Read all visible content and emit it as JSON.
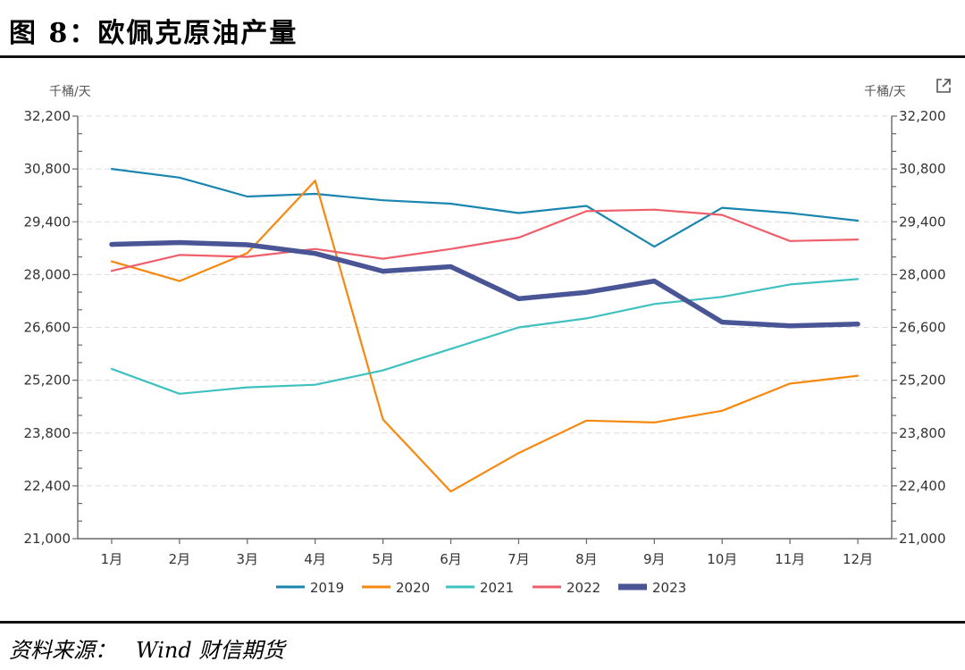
{
  "figure": {
    "title": "图 8：欧佩克原油产量",
    "source_label": "资料来源：",
    "source_text": "Wind 财信期货"
  },
  "toolbar": {
    "export_icon": "external-link-icon"
  },
  "chart_data": {
    "type": "line",
    "title": "欧佩克原油产量",
    "xlabel": "",
    "ylabel_left": "千桶/天",
    "ylabel_right": "千桶/天",
    "categories": [
      "1月",
      "2月",
      "3月",
      "4月",
      "5月",
      "6月",
      "7月",
      "8月",
      "9月",
      "10月",
      "11月",
      "12月"
    ],
    "ylim": [
      21000,
      32200
    ],
    "yticks": [
      21000,
      22400,
      23800,
      25200,
      26600,
      28000,
      29400,
      30800,
      32200
    ],
    "ytick_labels": [
      "21,000",
      "22,400",
      "23,800",
      "25,200",
      "26,600",
      "28,000",
      "29,400",
      "30,800",
      "32,200"
    ],
    "grid": true,
    "legend_position": "bottom-center",
    "series": [
      {
        "name": "2019",
        "color": "#1a86b0",
        "width": "thin",
        "values": [
          30800,
          30570,
          30070,
          30140,
          29970,
          29880,
          29630,
          29820,
          28740,
          29770,
          29630,
          29430
        ]
      },
      {
        "name": "2020",
        "color": "#f7880f",
        "width": "thin",
        "values": [
          28350,
          27830,
          28570,
          30490,
          24160,
          22250,
          23270,
          24130,
          24080,
          24390,
          25110,
          25320
        ]
      },
      {
        "name": "2021",
        "color": "#3fc1c0",
        "width": "thin",
        "values": [
          25500,
          24840,
          25010,
          25080,
          25460,
          26030,
          26600,
          26840,
          27220,
          27410,
          27740,
          27880
        ]
      },
      {
        "name": "2022",
        "color": "#ee5f6b",
        "width": "thin",
        "values": [
          28100,
          28520,
          28470,
          28680,
          28420,
          28680,
          28980,
          29680,
          29720,
          29580,
          28890,
          28930
        ]
      },
      {
        "name": "2023",
        "color": "#4a5596",
        "width": "thick",
        "values": [
          28800,
          28850,
          28790,
          28560,
          28090,
          28210,
          27360,
          27530,
          27830,
          26740,
          26640,
          26690
        ]
      }
    ]
  }
}
